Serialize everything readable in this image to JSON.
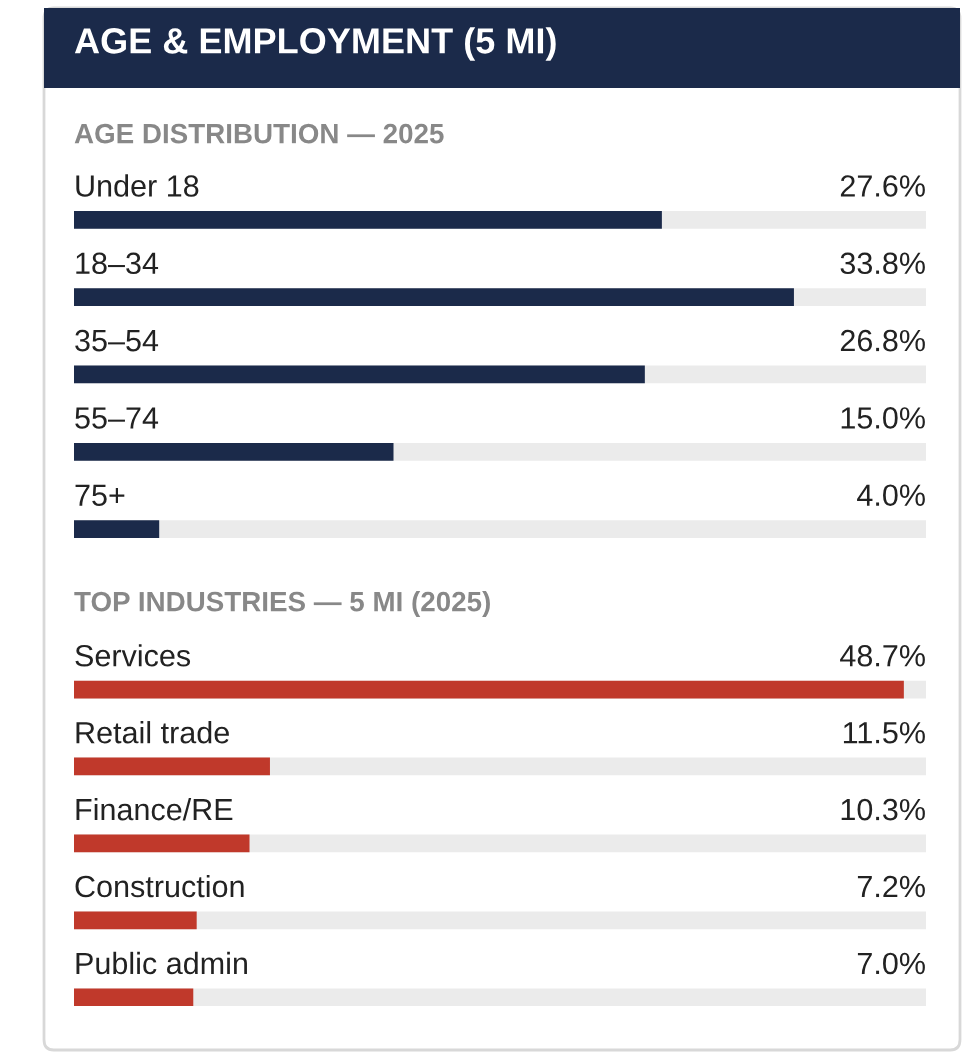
{
  "chart_data": [
    {
      "type": "bar",
      "orientation": "horizontal",
      "title": "AGE & EMPLOYMENT (5 MI)",
      "subtitle": "AGE DISTRIBUTION — 2025",
      "categories": [
        "Under 18",
        "18–34",
        "35–54",
        "55–74",
        "75+"
      ],
      "values": [
        27.6,
        33.8,
        26.8,
        15.0,
        4.0
      ],
      "value_labels": [
        "27.6%",
        "33.8%",
        "26.8%",
        "15.0%",
        "4.0%"
      ],
      "color": "#1b2a4a",
      "xlim": [
        0,
        40
      ]
    },
    {
      "type": "bar",
      "orientation": "horizontal",
      "title": "TOP INDUSTRIES — 5 MI (2025)",
      "categories": [
        "Services",
        "Retail trade",
        "Finance/RE",
        "Construction",
        "Public admin"
      ],
      "values": [
        48.7,
        11.5,
        10.3,
        7.2,
        7.0
      ],
      "value_labels": [
        "48.7%",
        "11.5%",
        "10.3%",
        "7.2%",
        "7.0%"
      ],
      "color": "#c0392b",
      "xlim": [
        0,
        50
      ]
    }
  ]
}
